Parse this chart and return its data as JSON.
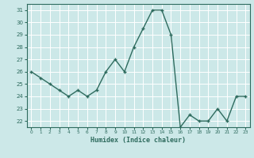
{
  "x": [
    0,
    1,
    2,
    3,
    4,
    5,
    6,
    7,
    8,
    9,
    10,
    11,
    12,
    13,
    14,
    15,
    16,
    17,
    18,
    19,
    20,
    21,
    22,
    23
  ],
  "y": [
    26,
    25.5,
    25,
    24.5,
    24,
    24.5,
    24,
    24.5,
    26,
    27,
    26,
    28,
    29.5,
    31,
    31,
    29,
    21.5,
    22.5,
    22,
    22,
    23,
    22,
    24,
    24
  ],
  "xlabel": "Humidex (Indice chaleur)",
  "xlim": [
    -0.5,
    23.5
  ],
  "ylim": [
    21.5,
    31.5
  ],
  "yticks": [
    22,
    23,
    24,
    25,
    26,
    27,
    28,
    29,
    30,
    31
  ],
  "xticks": [
    0,
    1,
    2,
    3,
    4,
    5,
    6,
    7,
    8,
    9,
    10,
    11,
    12,
    13,
    14,
    15,
    16,
    17,
    18,
    19,
    20,
    21,
    22,
    23
  ],
  "line_color": "#2e6b5e",
  "marker": "+",
  "marker_size": 3.5,
  "marker_ew": 1.0,
  "bg_color": "#cce8e8",
  "grid_color": "#ffffff",
  "tick_color": "#2e6b5e",
  "label_color": "#2e6b5e",
  "line_width": 1.0,
  "xtick_fontsize": 4.2,
  "ytick_fontsize": 5.0,
  "xlabel_fontsize": 6.0
}
